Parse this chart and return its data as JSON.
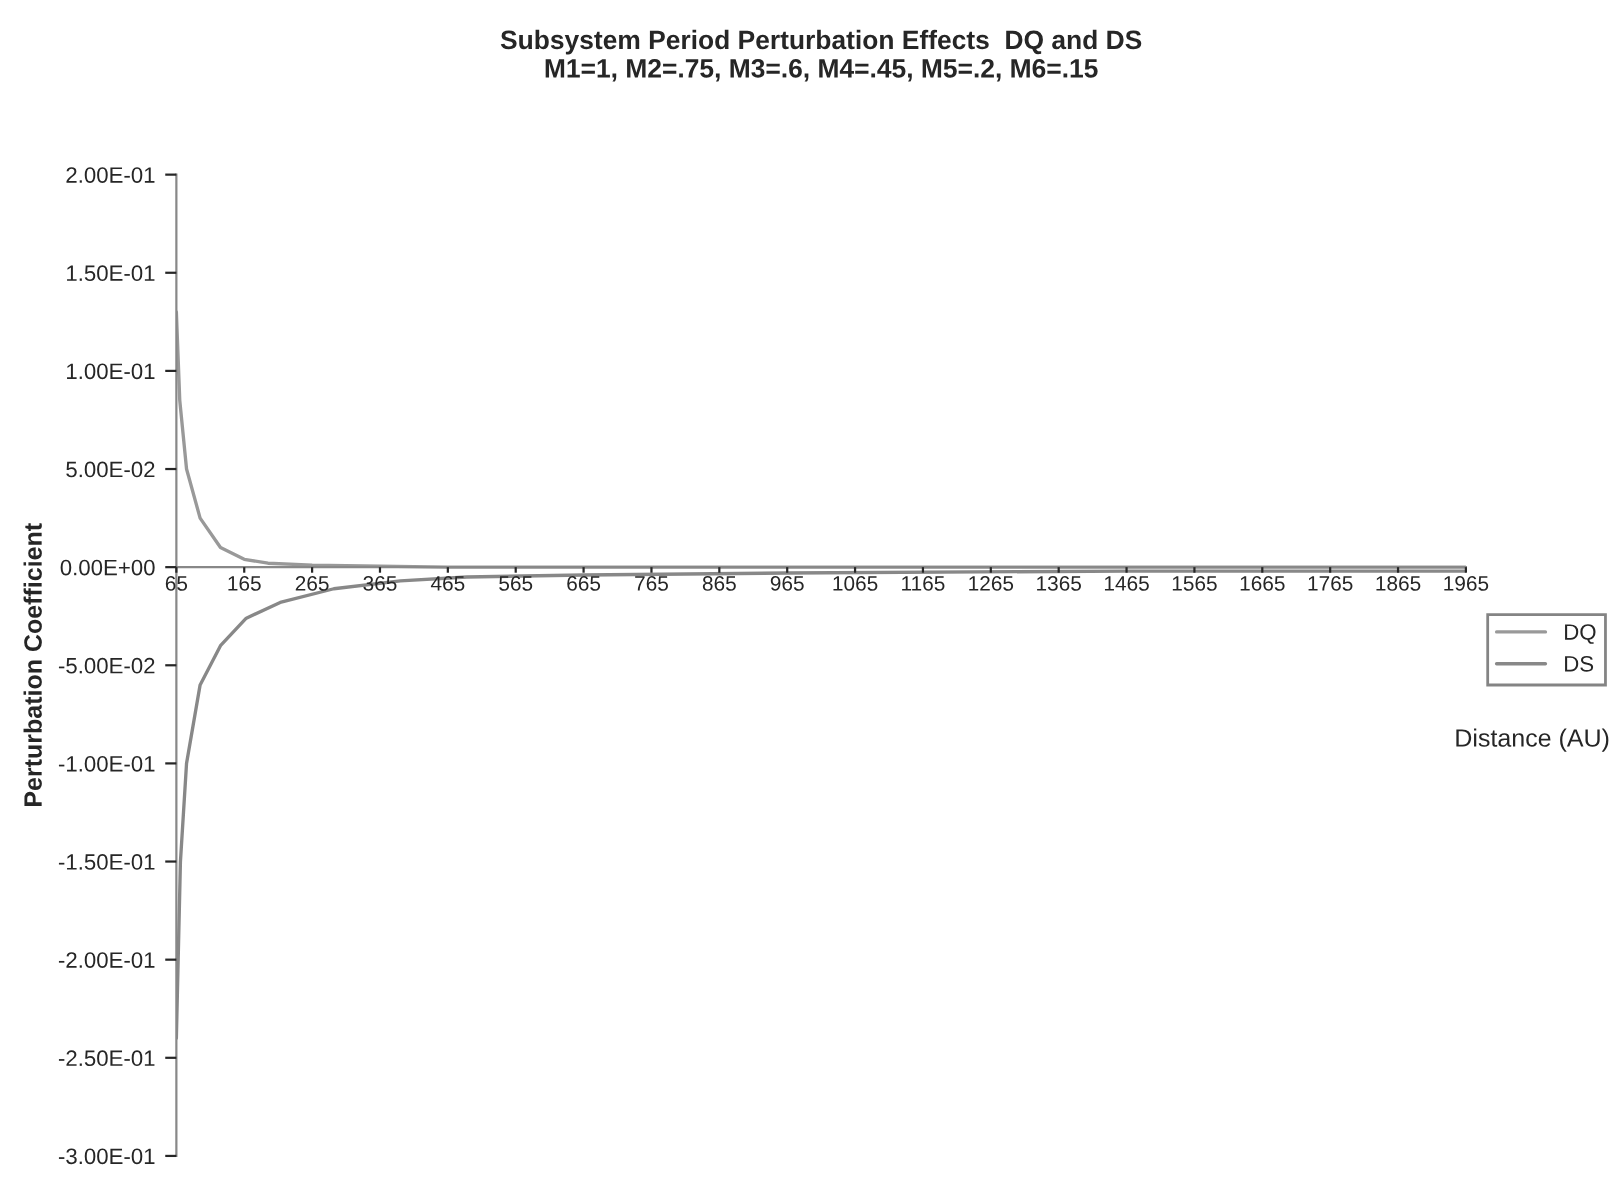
{
  "chart_data": {
    "type": "line",
    "title": "Subsystem Period Perturbation Effects  DQ and DS\nM1=1, M2=.75, M3=.6, M4=.45, M5=.2, M6=.15",
    "xlabel": "Distance (AU)",
    "ylabel": "Perturbation Coefficient",
    "series": [
      {
        "name": "DQ",
        "color": "#999999",
        "x": [
          65,
          70,
          80,
          100,
          130,
          165,
          200,
          265,
          465,
          965,
          1965
        ],
        "values": [
          0.13,
          0.085,
          0.05,
          0.025,
          0.01,
          0.004,
          0.002,
          0.001,
          0,
          0,
          0
        ]
      },
      {
        "name": "DS",
        "color": "#888888",
        "x": [
          65,
          71,
          80,
          100,
          130,
          168,
          218,
          297,
          395,
          493,
          665,
          965,
          1465,
          1965
        ],
        "values": [
          -0.24,
          -0.15,
          -0.1,
          -0.06,
          -0.04,
          -0.026,
          -0.018,
          -0.011,
          -0.007,
          -0.005,
          -0.004,
          -0.003,
          -0.002,
          -0.002
        ]
      }
    ],
    "xlim": [
      65,
      1965
    ],
    "xticks": [
      65,
      165,
      265,
      365,
      465,
      565,
      665,
      765,
      865,
      965,
      1065,
      1165,
      1265,
      1365,
      1465,
      1565,
      1665,
      1765,
      1865,
      1965
    ],
    "ylim": [
      -0.3,
      0.2
    ],
    "yticks": [
      {
        "value": 0.2,
        "label": "2.00E-01"
      },
      {
        "value": 0.15,
        "label": "1.50E-01"
      },
      {
        "value": 0.1,
        "label": "1.00E-01"
      },
      {
        "value": 0.05,
        "label": "5.00E-02"
      },
      {
        "value": 0,
        "label": "0.00E+00"
      },
      {
        "value": -0.05,
        "label": "-5.00E-02"
      },
      {
        "value": -0.1,
        "label": "-1.00E-01"
      },
      {
        "value": -0.15,
        "label": "-1.50E-01"
      },
      {
        "value": -0.2,
        "label": "-2.00E-01"
      },
      {
        "value": -0.25,
        "label": "-2.50E-01"
      },
      {
        "value": -0.3,
        "label": "-3.00E-01"
      }
    ],
    "grid": false,
    "legend": "right",
    "marker": "none",
    "line_style": "solid"
  }
}
